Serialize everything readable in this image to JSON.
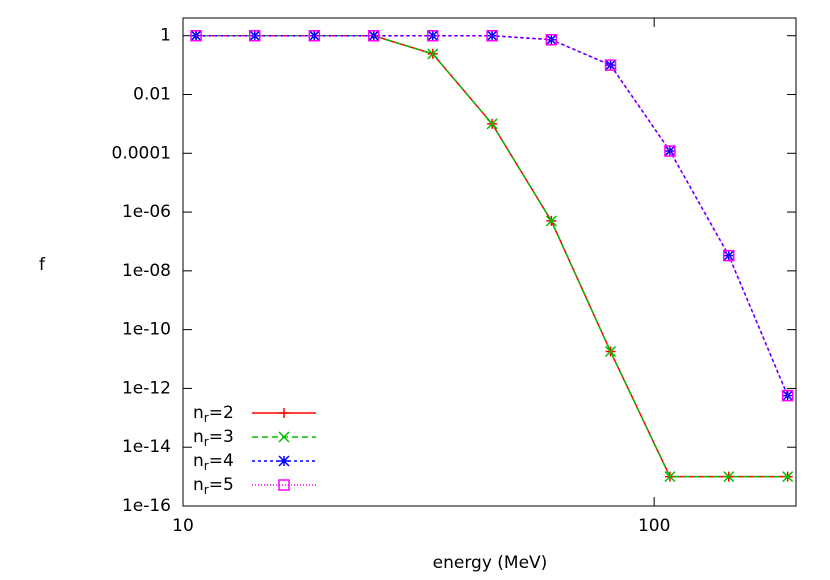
{
  "chart_data": {
    "type": "line",
    "x_label": "energy (MeV)",
    "y_label": "f",
    "x": [
      10.66,
      14.2,
      19.0,
      25.4,
      33.9,
      45.3,
      60.5,
      80.8,
      108,
      144,
      192
    ],
    "series": [
      {
        "name": "nr=2",
        "color": "#ff0000",
        "dash": "",
        "marker": "plus",
        "values": [
          1,
          1,
          1,
          1,
          0.24,
          0.001,
          5e-07,
          1.8e-11,
          1e-15,
          1e-15,
          1e-15
        ]
      },
      {
        "name": "nr=3",
        "color": "#00c000",
        "dash": "6,4",
        "marker": "cross",
        "values": [
          1,
          1,
          1,
          1,
          0.24,
          0.001,
          5e-07,
          1.8e-11,
          1e-15,
          1e-15,
          1e-15
        ]
      },
      {
        "name": "nr=4",
        "color": "#0000ff",
        "dash": "3,3",
        "marker": "star",
        "values": [
          1,
          1,
          1,
          1,
          1,
          1,
          0.73,
          0.1,
          0.00012,
          3.3e-08,
          5.7e-13
        ]
      },
      {
        "name": "nr=5",
        "color": "#ff00ff",
        "dash": "1,2",
        "marker": "square",
        "values": [
          1,
          1,
          1,
          1,
          1,
          1,
          0.73,
          0.1,
          0.00012,
          3.3e-08,
          5.7e-13
        ]
      }
    ],
    "xlog": true,
    "ylog": true,
    "xlim": [
      10,
      200
    ],
    "xticks": [
      10,
      100
    ],
    "ylim": [
      1e-16,
      4
    ],
    "yticks": [
      1,
      0.01,
      0.0001,
      {
        "value": 1e-06,
        "label": "1e-06"
      },
      {
        "value": 1e-08,
        "label": "1e-08"
      },
      {
        "value": 1e-10,
        "label": "1e-10"
      },
      {
        "value": 1e-12,
        "label": "1e-12"
      },
      {
        "value": 1e-14,
        "label": "1e-14"
      },
      {
        "value": 1e-16,
        "label": "1e-16"
      }
    ],
    "legend": "lower-left"
  }
}
